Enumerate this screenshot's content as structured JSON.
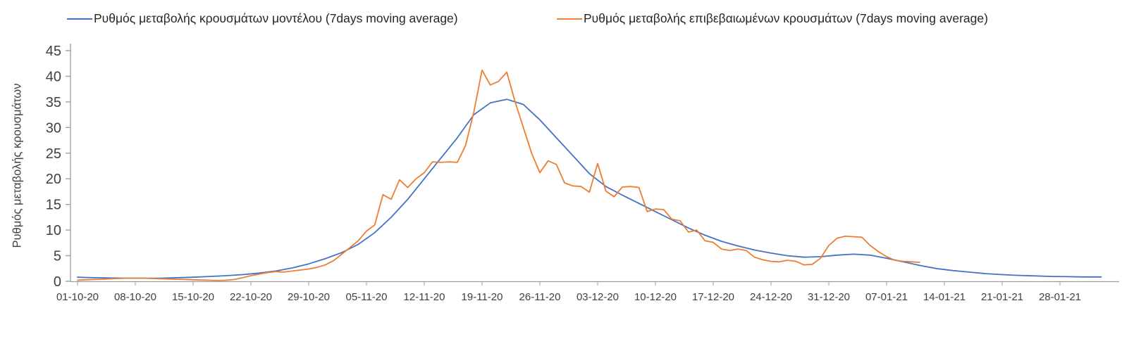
{
  "chart_data": {
    "type": "line",
    "title": "",
    "xlabel": "",
    "ylabel": "Ρυθμός μεταβολής κρουσμάτων",
    "ylim": [
      0,
      45
    ],
    "yticks": [
      0,
      5,
      10,
      15,
      20,
      25,
      30,
      35,
      40,
      45
    ],
    "xtick_labels": [
      "01-10-20",
      "08-10-20",
      "15-10-20",
      "22-10-20",
      "29-10-20",
      "05-11-20",
      "12-11-20",
      "19-11-20",
      "26-11-20",
      "03-12-20",
      "10-12-20",
      "17-12-20",
      "24-12-20",
      "31-12-20",
      "07-01-21",
      "14-01-21",
      "21-01-21",
      "28-01-21"
    ],
    "x_unit": "days since 01-10-20, ticks every 7 days",
    "grid": false,
    "legend_position": "top",
    "axis_color": "#9c9c9c",
    "tick_label_color": "#404040",
    "series": [
      {
        "name": "Ρυθμός μεταβολής κρουσμάτων μοντέλου (7days moving average)",
        "color": "#4472c4",
        "points": [
          [
            0,
            0.8
          ],
          [
            2,
            0.7
          ],
          [
            4,
            0.65
          ],
          [
            6,
            0.6
          ],
          [
            8,
            0.6
          ],
          [
            10,
            0.6
          ],
          [
            12,
            0.7
          ],
          [
            14,
            0.8
          ],
          [
            16,
            0.95
          ],
          [
            18,
            1.1
          ],
          [
            20,
            1.3
          ],
          [
            22,
            1.6
          ],
          [
            24,
            2.0
          ],
          [
            26,
            2.6
          ],
          [
            28,
            3.4
          ],
          [
            30,
            4.4
          ],
          [
            32,
            5.6
          ],
          [
            34,
            7.2
          ],
          [
            36,
            9.5
          ],
          [
            38,
            12.5
          ],
          [
            40,
            16.0
          ],
          [
            42,
            20.0
          ],
          [
            44,
            24.0
          ],
          [
            46,
            28.0
          ],
          [
            48,
            32.5
          ],
          [
            50,
            34.8
          ],
          [
            52,
            35.5
          ],
          [
            54,
            34.5
          ],
          [
            56,
            31.5
          ],
          [
            58,
            28.0
          ],
          [
            60,
            24.5
          ],
          [
            62,
            21.0
          ],
          [
            64,
            18.5
          ],
          [
            66,
            16.8
          ],
          [
            68,
            15.2
          ],
          [
            70,
            13.6
          ],
          [
            72,
            12.0
          ],
          [
            74,
            10.4
          ],
          [
            76,
            9.0
          ],
          [
            78,
            7.8
          ],
          [
            80,
            6.9
          ],
          [
            82,
            6.1
          ],
          [
            84,
            5.5
          ],
          [
            86,
            5.0
          ],
          [
            88,
            4.7
          ],
          [
            90,
            4.8
          ],
          [
            92,
            5.1
          ],
          [
            94,
            5.3
          ],
          [
            96,
            5.1
          ],
          [
            98,
            4.5
          ],
          [
            100,
            3.8
          ],
          [
            102,
            3.1
          ],
          [
            104,
            2.5
          ],
          [
            106,
            2.1
          ],
          [
            108,
            1.8
          ],
          [
            110,
            1.5
          ],
          [
            112,
            1.3
          ],
          [
            114,
            1.15
          ],
          [
            116,
            1.05
          ],
          [
            118,
            0.95
          ],
          [
            120,
            0.9
          ],
          [
            122,
            0.85
          ],
          [
            124,
            0.85
          ]
        ]
      },
      {
        "name": "Ρυθμός μεταβολής επιβεβαιωμένων κρουσμάτων (7days moving average)",
        "color": "#ed7d31",
        "points": [
          [
            0,
            0.2
          ],
          [
            1,
            0.3
          ],
          [
            2,
            0.35
          ],
          [
            3,
            0.4
          ],
          [
            4,
            0.5
          ],
          [
            5,
            0.55
          ],
          [
            6,
            0.6
          ],
          [
            7,
            0.6
          ],
          [
            8,
            0.6
          ],
          [
            9,
            0.55
          ],
          [
            10,
            0.5
          ],
          [
            11,
            0.45
          ],
          [
            12,
            0.4
          ],
          [
            13,
            0.35
          ],
          [
            14,
            0.3
          ],
          [
            15,
            0.25
          ],
          [
            16,
            0.2
          ],
          [
            17,
            0.15
          ],
          [
            18,
            0.2
          ],
          [
            19,
            0.35
          ],
          [
            20,
            0.7
          ],
          [
            21,
            1.1
          ],
          [
            22,
            1.4
          ],
          [
            23,
            1.7
          ],
          [
            24,
            1.9
          ],
          [
            25,
            1.8
          ],
          [
            26,
            2.0
          ],
          [
            27,
            2.2
          ],
          [
            28,
            2.4
          ],
          [
            29,
            2.7
          ],
          [
            30,
            3.2
          ],
          [
            31,
            4.0
          ],
          [
            32,
            5.3
          ],
          [
            33,
            6.6
          ],
          [
            34,
            7.9
          ],
          [
            35,
            9.8
          ],
          [
            36,
            11.0
          ],
          [
            37,
            16.9
          ],
          [
            38,
            16.0
          ],
          [
            39,
            19.8
          ],
          [
            40,
            18.3
          ],
          [
            41,
            20.0
          ],
          [
            42,
            21.2
          ],
          [
            43,
            23.3
          ],
          [
            44,
            23.2
          ],
          [
            45,
            23.3
          ],
          [
            46,
            23.2
          ],
          [
            47,
            26.5
          ],
          [
            48,
            33.0
          ],
          [
            49,
            41.2
          ],
          [
            50,
            38.3
          ],
          [
            51,
            39.0
          ],
          [
            52,
            40.8
          ],
          [
            53,
            35.0
          ],
          [
            54,
            30.0
          ],
          [
            55,
            25.0
          ],
          [
            56,
            21.2
          ],
          [
            57,
            23.5
          ],
          [
            58,
            22.8
          ],
          [
            59,
            19.2
          ],
          [
            60,
            18.6
          ],
          [
            61,
            18.5
          ],
          [
            62,
            17.4
          ],
          [
            63,
            23.0
          ],
          [
            64,
            17.6
          ],
          [
            65,
            16.5
          ],
          [
            66,
            18.4
          ],
          [
            67,
            18.5
          ],
          [
            68,
            18.3
          ],
          [
            69,
            13.6
          ],
          [
            70,
            14.1
          ],
          [
            71,
            14.0
          ],
          [
            72,
            12.1
          ],
          [
            73,
            11.8
          ],
          [
            74,
            9.6
          ],
          [
            75,
            10.0
          ],
          [
            76,
            7.9
          ],
          [
            77,
            7.6
          ],
          [
            78,
            6.3
          ],
          [
            79,
            6.0
          ],
          [
            80,
            6.3
          ],
          [
            81,
            6.0
          ],
          [
            82,
            4.7
          ],
          [
            83,
            4.2
          ],
          [
            84,
            3.9
          ],
          [
            85,
            3.8
          ],
          [
            86,
            4.1
          ],
          [
            87,
            3.9
          ],
          [
            88,
            3.2
          ],
          [
            89,
            3.3
          ],
          [
            90,
            4.5
          ],
          [
            91,
            7.0
          ],
          [
            92,
            8.4
          ],
          [
            93,
            8.8
          ],
          [
            94,
            8.7
          ],
          [
            95,
            8.6
          ],
          [
            96,
            7.0
          ],
          [
            97,
            5.8
          ],
          [
            98,
            4.8
          ],
          [
            99,
            4.1
          ],
          [
            100,
            3.9
          ],
          [
            101,
            3.8
          ],
          [
            102,
            3.7
          ]
        ]
      }
    ]
  }
}
